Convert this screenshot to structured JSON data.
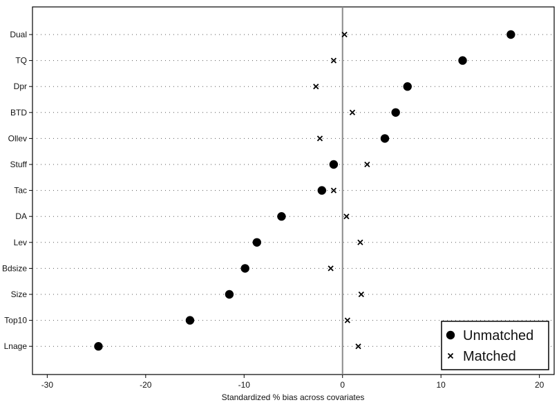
{
  "chart_data": {
    "type": "scatter",
    "orientation": "horizontal-dot-plot",
    "title": "",
    "xlabel": "Standardized % bias across covariates",
    "ylabel": "",
    "xlim": [
      -31.5,
      21.5
    ],
    "xticks": [
      -30,
      -20,
      -10,
      0,
      10,
      20
    ],
    "reference_line_x": 0,
    "grid": "dotted horizontal lines at each category",
    "legend_position": "bottom-right",
    "categories": [
      "Dual",
      "TQ",
      "Dpr",
      "BTD",
      "Ollev",
      "Stuff",
      "Tac",
      "DA",
      "Lev",
      "Bdsize",
      "Size",
      "Top10",
      "Lnage"
    ],
    "series": [
      {
        "name": "Unmatched",
        "marker": "filled-circle",
        "values": [
          17.1,
          12.2,
          6.6,
          5.4,
          4.3,
          -0.9,
          -2.1,
          -6.2,
          -8.7,
          -9.9,
          -11.5,
          -15.5,
          -24.8
        ]
      },
      {
        "name": "Matched",
        "marker": "x",
        "values": [
          0.2,
          -0.9,
          -2.7,
          1.0,
          -2.3,
          2.5,
          -0.9,
          0.4,
          1.8,
          -1.2,
          1.9,
          0.5,
          1.6
        ]
      }
    ]
  }
}
